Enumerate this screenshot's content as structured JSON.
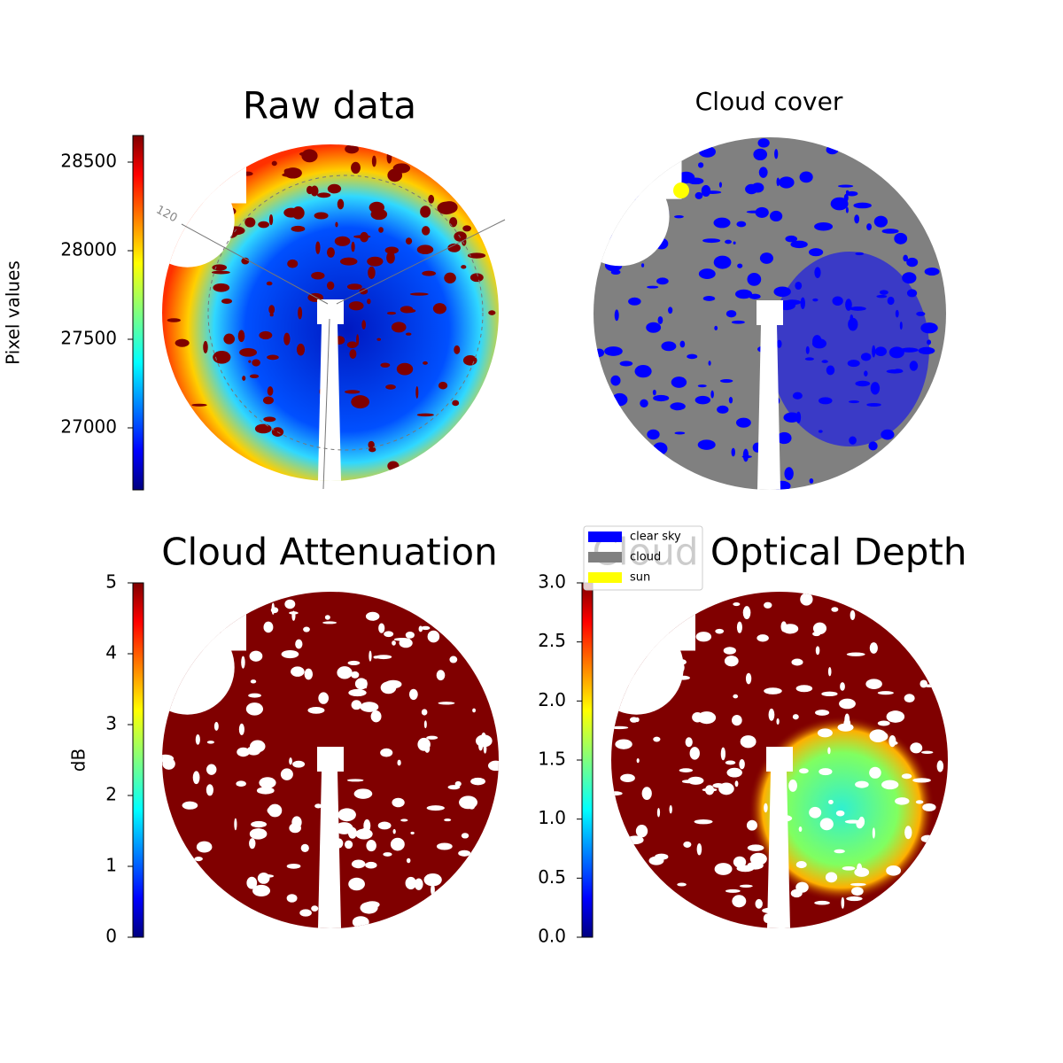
{
  "chart_data": [
    {
      "type": "heatmap",
      "title": "Raw data",
      "colormap": "jet",
      "annotation": "120",
      "colorbar": {
        "label": "Pixel values",
        "lim": [
          26650,
          28650
        ],
        "ticks": [
          27000,
          27500,
          28000,
          28500
        ]
      }
    },
    {
      "type": "heatmap",
      "title": "Cloud cover",
      "legend": [
        {
          "name": "clear sky",
          "color": "#0000ff"
        },
        {
          "name": "cloud",
          "color": "#808080"
        },
        {
          "name": "sun",
          "color": "#ffff00"
        }
      ]
    },
    {
      "type": "heatmap",
      "title": "Cloud Attenuation",
      "colormap": "jet",
      "colorbar": {
        "label": "dB",
        "lim": [
          0,
          5
        ],
        "ticks": [
          0,
          1,
          2,
          3,
          4,
          5
        ]
      }
    },
    {
      "type": "heatmap",
      "title": "Cloud Optical Depth",
      "colormap": "jet",
      "colorbar": {
        "lim": [
          0,
          3
        ],
        "ticks": [
          {
            "value": 0,
            "label": "0.0"
          },
          0.5,
          {
            "value": 1,
            "label": "1.0"
          },
          1.5,
          {
            "value": 2,
            "label": "2.0"
          },
          2.5,
          {
            "value": 3,
            "label": "3.0"
          }
        ]
      }
    }
  ]
}
